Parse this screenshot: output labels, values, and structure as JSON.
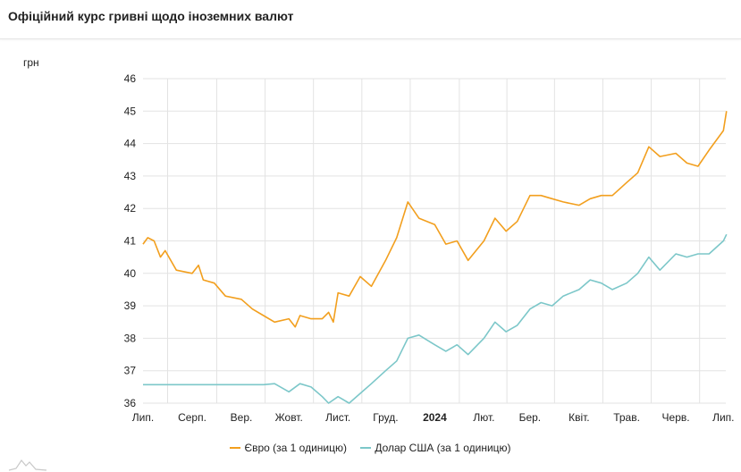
{
  "header": {
    "title": "Офіційний курс гривні щодо іноземних валют"
  },
  "chart_data": {
    "type": "line",
    "title": "",
    "ylabel": "грн",
    "xlabel": "",
    "ylim": [
      36,
      46
    ],
    "yticks": [
      36,
      37,
      38,
      39,
      40,
      41,
      42,
      43,
      44,
      45,
      46
    ],
    "xlim": [
      "2023-07-01",
      "2024-07-03"
    ],
    "xticks": [
      {
        "date": "2023-07-01",
        "label": "Лип."
      },
      {
        "date": "2023-08-01",
        "label": "Серп."
      },
      {
        "date": "2023-09-01",
        "label": "Вер."
      },
      {
        "date": "2023-10-01",
        "label": "Жовт."
      },
      {
        "date": "2023-11-01",
        "label": "Лист."
      },
      {
        "date": "2023-12-01",
        "label": "Груд."
      },
      {
        "date": "2024-01-01",
        "label": "2024",
        "bold": true
      },
      {
        "date": "2024-02-01",
        "label": "Лют."
      },
      {
        "date": "2024-03-01",
        "label": "Бер."
      },
      {
        "date": "2024-04-01",
        "label": "Квіт."
      },
      {
        "date": "2024-05-01",
        "label": "Трав."
      },
      {
        "date": "2024-06-01",
        "label": "Черв."
      },
      {
        "date": "2024-07-01",
        "label": "Лип."
      }
    ],
    "grid": true,
    "legend_position": "bottom",
    "series": [
      {
        "name": "Євро (за 1 одиницю)",
        "color": "#f29f1e",
        "points": [
          [
            "2023-07-01",
            40.9
          ],
          [
            "2023-07-04",
            41.1
          ],
          [
            "2023-07-08",
            41.0
          ],
          [
            "2023-07-12",
            40.5
          ],
          [
            "2023-07-15",
            40.7
          ],
          [
            "2023-07-22",
            40.1
          ],
          [
            "2023-08-01",
            40.0
          ],
          [
            "2023-08-05",
            40.25
          ],
          [
            "2023-08-08",
            39.8
          ],
          [
            "2023-08-15",
            39.7
          ],
          [
            "2023-08-22",
            39.3
          ],
          [
            "2023-09-01",
            39.2
          ],
          [
            "2023-09-08",
            38.9
          ],
          [
            "2023-09-15",
            38.7
          ],
          [
            "2023-09-22",
            38.5
          ],
          [
            "2023-10-01",
            38.6
          ],
          [
            "2023-10-05",
            38.35
          ],
          [
            "2023-10-08",
            38.7
          ],
          [
            "2023-10-15",
            38.6
          ],
          [
            "2023-10-22",
            38.6
          ],
          [
            "2023-10-26",
            38.8
          ],
          [
            "2023-10-29",
            38.5
          ],
          [
            "2023-11-01",
            39.4
          ],
          [
            "2023-11-08",
            39.3
          ],
          [
            "2023-11-15",
            39.9
          ],
          [
            "2023-11-22",
            39.6
          ],
          [
            "2023-12-01",
            40.4
          ],
          [
            "2023-12-08",
            41.1
          ],
          [
            "2023-12-15",
            42.2
          ],
          [
            "2023-12-22",
            41.7
          ],
          [
            "2024-01-01",
            41.5
          ],
          [
            "2024-01-08",
            40.9
          ],
          [
            "2024-01-15",
            41.0
          ],
          [
            "2024-01-22",
            40.4
          ],
          [
            "2024-02-01",
            41.0
          ],
          [
            "2024-02-08",
            41.7
          ],
          [
            "2024-02-15",
            41.3
          ],
          [
            "2024-02-22",
            41.6
          ],
          [
            "2024-03-01",
            42.4
          ],
          [
            "2024-03-08",
            42.4
          ],
          [
            "2024-03-15",
            42.3
          ],
          [
            "2024-03-22",
            42.2
          ],
          [
            "2024-04-01",
            42.1
          ],
          [
            "2024-04-08",
            42.3
          ],
          [
            "2024-04-15",
            42.4
          ],
          [
            "2024-04-22",
            42.4
          ],
          [
            "2024-05-01",
            42.8
          ],
          [
            "2024-05-08",
            43.1
          ],
          [
            "2024-05-15",
            43.9
          ],
          [
            "2024-05-22",
            43.6
          ],
          [
            "2024-06-01",
            43.7
          ],
          [
            "2024-06-08",
            43.4
          ],
          [
            "2024-06-15",
            43.3
          ],
          [
            "2024-06-22",
            43.8
          ],
          [
            "2024-07-01",
            44.4
          ],
          [
            "2024-07-03",
            45.0
          ]
        ]
      },
      {
        "name": "Долар США (за 1 одиницю)",
        "color": "#7cc7c9",
        "points": [
          [
            "2023-07-01",
            36.57
          ],
          [
            "2023-09-15",
            36.57
          ],
          [
            "2023-09-22",
            36.6
          ],
          [
            "2023-10-01",
            36.35
          ],
          [
            "2023-10-08",
            36.6
          ],
          [
            "2023-10-15",
            36.5
          ],
          [
            "2023-10-22",
            36.2
          ],
          [
            "2023-10-26",
            36.0
          ],
          [
            "2023-11-01",
            36.2
          ],
          [
            "2023-11-08",
            36.0
          ],
          [
            "2023-11-15",
            36.3
          ],
          [
            "2023-11-22",
            36.6
          ],
          [
            "2023-12-01",
            37.0
          ],
          [
            "2023-12-08",
            37.3
          ],
          [
            "2023-12-15",
            38.0
          ],
          [
            "2023-12-22",
            38.1
          ],
          [
            "2024-01-01",
            37.8
          ],
          [
            "2024-01-08",
            37.6
          ],
          [
            "2024-01-15",
            37.8
          ],
          [
            "2024-01-22",
            37.5
          ],
          [
            "2024-02-01",
            38.0
          ],
          [
            "2024-02-08",
            38.5
          ],
          [
            "2024-02-15",
            38.2
          ],
          [
            "2024-02-22",
            38.4
          ],
          [
            "2024-03-01",
            38.9
          ],
          [
            "2024-03-08",
            39.1
          ],
          [
            "2024-03-15",
            39.0
          ],
          [
            "2024-03-22",
            39.3
          ],
          [
            "2024-04-01",
            39.5
          ],
          [
            "2024-04-08",
            39.8
          ],
          [
            "2024-04-15",
            39.7
          ],
          [
            "2024-04-22",
            39.5
          ],
          [
            "2024-05-01",
            39.7
          ],
          [
            "2024-05-08",
            40.0
          ],
          [
            "2024-05-15",
            40.5
          ],
          [
            "2024-05-22",
            40.1
          ],
          [
            "2024-06-01",
            40.6
          ],
          [
            "2024-06-08",
            40.5
          ],
          [
            "2024-06-15",
            40.6
          ],
          [
            "2024-06-22",
            40.6
          ],
          [
            "2024-07-01",
            41.0
          ],
          [
            "2024-07-03",
            41.2
          ]
        ]
      }
    ]
  }
}
